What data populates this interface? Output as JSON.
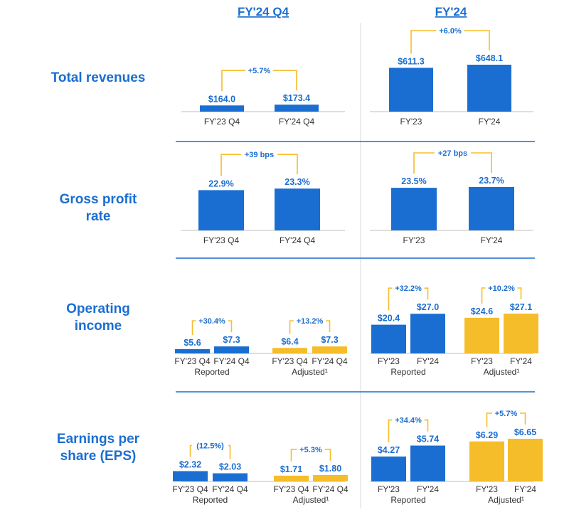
{
  "colors": {
    "blue": "#1a6ed1",
    "gold": "#f5bd2a",
    "bracket": "#f5bd2a",
    "divider": "#1a6ed1",
    "vline": "#d8d8d8",
    "axis": "#bfbfbf",
    "text": "#333333"
  },
  "chart_data": {
    "type": "bar",
    "columns": [
      "FY'24 Q4",
      "FY'24"
    ],
    "rows": [
      {
        "label_lines": [
          "Total revenues"
        ],
        "panels": [
          {
            "groups": [
              {
                "sublabel": "",
                "color": "blue",
                "delta": "+5.7%",
                "bars": [
                  {
                    "category": "FY'23 Q4",
                    "value": 164.0,
                    "label": "$164.0"
                  },
                  {
                    "category": "FY'24 Q4",
                    "value": 173.4,
                    "label": "$173.4"
                  }
                ]
              }
            ]
          },
          {
            "groups": [
              {
                "sublabel": "",
                "color": "blue",
                "delta": "+6.0%",
                "bars": [
                  {
                    "category": "FY'23",
                    "value": 611.3,
                    "label": "$611.3"
                  },
                  {
                    "category": "FY'24",
                    "value": 648.1,
                    "label": "$648.1"
                  }
                ]
              }
            ]
          }
        ]
      },
      {
        "label_lines": [
          "Gross profit",
          "rate"
        ],
        "panels": [
          {
            "groups": [
              {
                "sublabel": "",
                "color": "blue",
                "delta": "+39 bps",
                "bars": [
                  {
                    "category": "FY'23 Q4",
                    "value": 22.9,
                    "label": "22.9%"
                  },
                  {
                    "category": "FY'24 Q4",
                    "value": 23.3,
                    "label": "23.3%"
                  }
                ]
              }
            ]
          },
          {
            "groups": [
              {
                "sublabel": "",
                "color": "blue",
                "delta": "+27 bps",
                "bars": [
                  {
                    "category": "FY'23",
                    "value": 23.5,
                    "label": "23.5%"
                  },
                  {
                    "category": "FY'24",
                    "value": 23.7,
                    "label": "23.7%"
                  }
                ]
              }
            ]
          }
        ]
      },
      {
        "label_lines": [
          "Operating",
          "income"
        ],
        "panels": [
          {
            "groups": [
              {
                "sublabel": "Reported",
                "color": "blue",
                "delta": "+30.4%",
                "bars": [
                  {
                    "category": "FY'23 Q4",
                    "value": 5.6,
                    "label": "$5.6"
                  },
                  {
                    "category": "FY'24 Q4",
                    "value": 7.3,
                    "label": "$7.3"
                  }
                ]
              },
              {
                "sublabel": "Adjusted¹",
                "color": "gold",
                "delta": "+13.2%",
                "bars": [
                  {
                    "category": "FY'23 Q4",
                    "value": 6.4,
                    "label": "$6.4"
                  },
                  {
                    "category": "FY'24 Q4",
                    "value": 7.3,
                    "label": "$7.3"
                  }
                ]
              }
            ]
          },
          {
            "groups": [
              {
                "sublabel": "Reported",
                "color": "blue",
                "delta": "+32.2%",
                "bars": [
                  {
                    "category": "FY'23",
                    "value": 20.4,
                    "label": "$20.4"
                  },
                  {
                    "category": "FY'24",
                    "value": 27.0,
                    "label": "$27.0"
                  }
                ]
              },
              {
                "sublabel": "Adjusted¹",
                "color": "gold",
                "delta": "+10.2%",
                "bars": [
                  {
                    "category": "FY'23",
                    "value": 24.6,
                    "label": "$24.6"
                  },
                  {
                    "category": "FY'24",
                    "value": 27.1,
                    "label": "$27.1"
                  }
                ]
              }
            ]
          }
        ]
      },
      {
        "label_lines": [
          "Earnings per",
          "share (EPS)"
        ],
        "panels": [
          {
            "groups": [
              {
                "sublabel": "Reported",
                "color": "blue",
                "delta": "(12.5%)",
                "bars": [
                  {
                    "category": "FY'23 Q4",
                    "value": 2.32,
                    "label": "$2.32"
                  },
                  {
                    "category": "FY'24 Q4",
                    "value": 2.03,
                    "label": "$2.03"
                  }
                ]
              },
              {
                "sublabel": "Adjusted¹",
                "color": "gold",
                "delta": "+5.3%",
                "bars": [
                  {
                    "category": "FY'23 Q4",
                    "value": 1.71,
                    "label": "$1.71"
                  },
                  {
                    "category": "FY'24 Q4",
                    "value": 1.8,
                    "label": "$1.80"
                  }
                ]
              }
            ]
          },
          {
            "groups": [
              {
                "sublabel": "Reported",
                "color": "blue",
                "delta": "+34.4%",
                "bars": [
                  {
                    "category": "FY'23",
                    "value": 4.27,
                    "label": "$4.27"
                  },
                  {
                    "category": "FY'24",
                    "value": 5.74,
                    "label": "$5.74"
                  }
                ]
              },
              {
                "sublabel": "Adjusted¹",
                "color": "gold",
                "delta": "+5.7%",
                "bars": [
                  {
                    "category": "FY'23",
                    "value": 6.29,
                    "label": "$6.29"
                  },
                  {
                    "category": "FY'24",
                    "value": 6.65,
                    "label": "$6.65"
                  }
                ]
              }
            ]
          }
        ]
      }
    ]
  }
}
